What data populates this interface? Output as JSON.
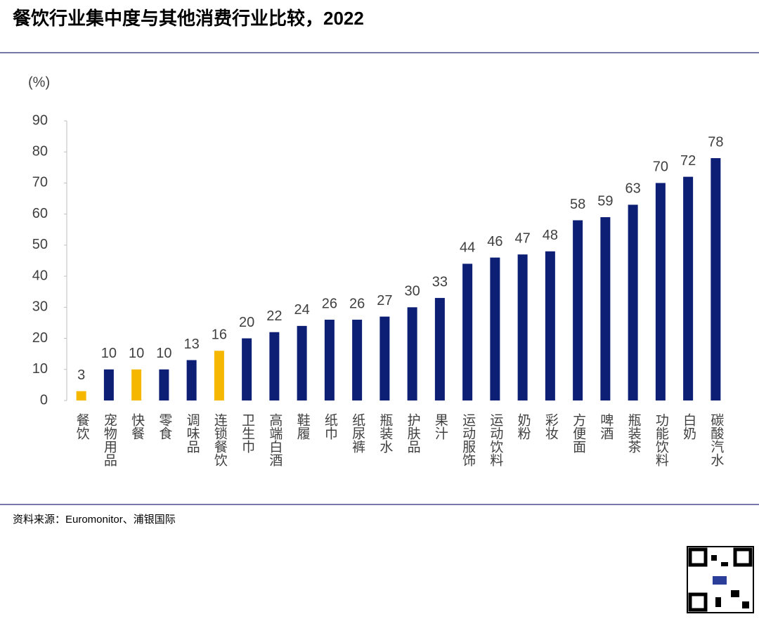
{
  "chart_data": {
    "type": "bar",
    "title": "餐饮行业集中度与其他消费行业比较，2022",
    "y_label": "(%)",
    "categories": [
      "餐饮",
      "宠物用品",
      "快餐",
      "零食",
      "调味品",
      "连锁餐饮",
      "卫生巾",
      "高端白酒",
      "鞋履",
      "纸巾",
      "纸尿裤",
      "瓶装水",
      "护肤品",
      "果汁",
      "运动服饰",
      "运动饮料",
      "奶粉",
      "彩妆",
      "方便面",
      "啤酒",
      "瓶装茶",
      "功能饮料",
      "白奶",
      "碳酸汽水"
    ],
    "values": [
      3,
      10,
      10,
      10,
      13,
      16,
      20,
      22,
      24,
      26,
      26,
      27,
      30,
      33,
      44,
      46,
      47,
      48,
      58,
      59,
      63,
      70,
      72,
      78
    ],
    "colors": [
      "#f5b700",
      "#0c1f74",
      "#f5b700",
      "#0c1f74",
      "#0c1f74",
      "#f5b700",
      "#0c1f74",
      "#0c1f74",
      "#0c1f74",
      "#0c1f74",
      "#0c1f74",
      "#0c1f74",
      "#0c1f74",
      "#0c1f74",
      "#0c1f74",
      "#0c1f74",
      "#0c1f74",
      "#0c1f74",
      "#0c1f74",
      "#0c1f74",
      "#0c1f74",
      "#0c1f74",
      "#0c1f74",
      "#0c1f74"
    ],
    "ylim": [
      0,
      90
    ],
    "yticks": [
      0,
      10,
      20,
      30,
      40,
      50,
      60,
      70,
      80,
      90
    ],
    "grid": false,
    "source": "资料来源：Euromonitor、浦银国际"
  }
}
